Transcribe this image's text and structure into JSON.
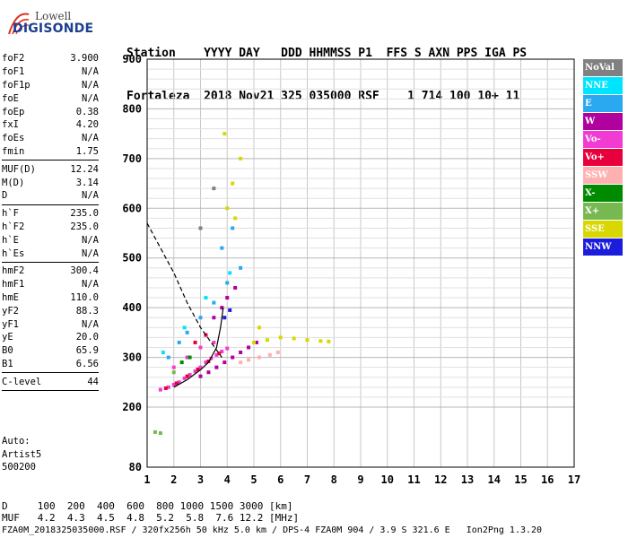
{
  "logo": {
    "brand_top": "Lowell",
    "brand_bottom": "DIGISONDE"
  },
  "header": {
    "line1": "Station    YYYY DAY   DDD HHMMSS P1  FFS S AXN PPS IGA PS",
    "line2": "Fortaleza  2018 Nov21 325 035000 RSF    1 714 100 10+ 11"
  },
  "params_groups": [
    [
      {
        "k": "foF2",
        "v": "3.900"
      },
      {
        "k": "foF1",
        "v": "N/A"
      },
      {
        "k": "foF1p",
        "v": "N/A"
      },
      {
        "k": "foE",
        "v": "N/A"
      },
      {
        "k": "foEp",
        "v": "0.38"
      },
      {
        "k": "fxI",
        "v": "4.20"
      },
      {
        "k": "foEs",
        "v": "N/A"
      },
      {
        "k": "fmin",
        "v": "1.75"
      }
    ],
    [
      {
        "k": "MUF(D)",
        "v": "12.24"
      },
      {
        "k": "M(D)",
        "v": "3.14"
      },
      {
        "k": "D",
        "v": "N/A"
      }
    ],
    [
      {
        "k": "h`F",
        "v": "235.0"
      },
      {
        "k": "h`F2",
        "v": "235.0"
      },
      {
        "k": "h`E",
        "v": "N/A"
      },
      {
        "k": "h`Es",
        "v": "N/A"
      }
    ],
    [
      {
        "k": "hmF2",
        "v": "300.4"
      },
      {
        "k": "hmF1",
        "v": "N/A"
      },
      {
        "k": "hmE",
        "v": "110.0"
      },
      {
        "k": "yF2",
        "v": "88.3"
      },
      {
        "k": "yF1",
        "v": "N/A"
      },
      {
        "k": "yE",
        "v": "20.0"
      },
      {
        "k": "B0",
        "v": "65.9"
      },
      {
        "k": "B1",
        "v": "6.56"
      }
    ],
    [
      {
        "k": "C-level",
        "v": "44"
      }
    ]
  ],
  "auto": {
    "line1": "Auto:",
    "line2": "Artist5",
    "line3": "500200"
  },
  "legend": [
    {
      "label": "NoVal",
      "color": "#808080"
    },
    {
      "label": "NNE",
      "color": "#00e5ff"
    },
    {
      "label": "E",
      "color": "#2aa8f0"
    },
    {
      "label": "W",
      "color": "#b0009e"
    },
    {
      "label": "Vo-",
      "color": "#f03cd2"
    },
    {
      "label": "Vo+",
      "color": "#e8003c"
    },
    {
      "label": "SSW",
      "color": "#ffb0b0"
    },
    {
      "label": "X-",
      "color": "#008a00"
    },
    {
      "label": "X+",
      "color": "#78b850"
    },
    {
      "label": "SSE",
      "color": "#d8d800"
    },
    {
      "label": "NNW",
      "color": "#1c1cdc"
    }
  ],
  "footer": {
    "line1": "D     100  200  400  600  800 1000 1500 3000 [km]",
    "line2": "MUF   4.2  4.3  4.5  4.8  5.2  5.8  7.6 12.2 [MHz]",
    "line3": "FZA0M_2018325035000.RSF / 320fx256h 50 kHz 5.0 km / DPS-4 FZA0M 904 / 3.9 S 321.6 E   Ion2Png 1.3.20"
  },
  "chart_data": {
    "type": "scatter",
    "title": "",
    "xlabel": "",
    "ylabel": "",
    "xlim": [
      1,
      17
    ],
    "ylim": [
      80,
      900
    ],
    "x_ticks": [
      1,
      2,
      3,
      4,
      5,
      6,
      7,
      8,
      9,
      10,
      11,
      12,
      13,
      14,
      15,
      16,
      17
    ],
    "y_ticks": [
      80,
      200,
      300,
      400,
      500,
      600,
      700,
      800,
      900
    ],
    "grid": true,
    "series": [
      {
        "name": "Vo-",
        "color": "#f03cd2",
        "points": [
          [
            1.5,
            235
          ],
          [
            1.8,
            240
          ],
          [
            2.0,
            245
          ],
          [
            2.2,
            250
          ],
          [
            2.4,
            258
          ],
          [
            2.6,
            265
          ],
          [
            2.8,
            272
          ],
          [
            3.0,
            280
          ],
          [
            3.2,
            290
          ],
          [
            3.4,
            298
          ],
          [
            3.6,
            305
          ],
          [
            3.8,
            312
          ],
          [
            4.0,
            318
          ],
          [
            2.5,
            300
          ],
          [
            3.0,
            320
          ],
          [
            3.5,
            330
          ],
          [
            2.0,
            280
          ]
        ]
      },
      {
        "name": "W",
        "color": "#b0009e",
        "points": [
          [
            3.0,
            262
          ],
          [
            3.3,
            270
          ],
          [
            3.6,
            280
          ],
          [
            3.9,
            290
          ],
          [
            4.2,
            300
          ],
          [
            4.5,
            310
          ],
          [
            4.8,
            320
          ],
          [
            5.1,
            330
          ],
          [
            3.8,
            400
          ],
          [
            4.0,
            420
          ],
          [
            4.3,
            440
          ],
          [
            3.5,
            380
          ]
        ]
      },
      {
        "name": "Vo+",
        "color": "#e8003c",
        "points": [
          [
            1.7,
            238
          ],
          [
            2.1,
            248
          ],
          [
            2.5,
            262
          ],
          [
            2.9,
            276
          ],
          [
            3.3,
            292
          ],
          [
            3.7,
            308
          ],
          [
            2.8,
            330
          ],
          [
            3.2,
            345
          ]
        ]
      },
      {
        "name": "E",
        "color": "#2aa8f0",
        "points": [
          [
            1.8,
            300
          ],
          [
            2.5,
            350
          ],
          [
            3.0,
            380
          ],
          [
            3.5,
            410
          ],
          [
            4.0,
            450
          ],
          [
            4.5,
            480
          ],
          [
            3.8,
            520
          ],
          [
            4.2,
            560
          ],
          [
            2.2,
            330
          ]
        ]
      },
      {
        "name": "NNE",
        "color": "#00e5ff",
        "points": [
          [
            1.6,
            310
          ],
          [
            2.4,
            360
          ],
          [
            3.2,
            420
          ],
          [
            4.1,
            470
          ]
        ]
      },
      {
        "name": "SSE",
        "color": "#d8d800",
        "points": [
          [
            5.0,
            330
          ],
          [
            5.5,
            335
          ],
          [
            6.0,
            340
          ],
          [
            6.5,
            338
          ],
          [
            7.0,
            335
          ],
          [
            7.5,
            333
          ],
          [
            7.8,
            332
          ],
          [
            4.0,
            600
          ],
          [
            4.2,
            650
          ],
          [
            4.5,
            700
          ],
          [
            3.9,
            750
          ],
          [
            4.3,
            580
          ],
          [
            5.2,
            360
          ]
        ]
      },
      {
        "name": "SSW",
        "color": "#ffb0b0",
        "points": [
          [
            4.5,
            290
          ],
          [
            4.8,
            295
          ],
          [
            5.2,
            300
          ],
          [
            5.6,
            305
          ],
          [
            5.9,
            310
          ]
        ]
      },
      {
        "name": "X-",
        "color": "#008a00",
        "points": [
          [
            2.3,
            290
          ],
          [
            2.6,
            300
          ]
        ]
      },
      {
        "name": "X+",
        "color": "#78b850",
        "points": [
          [
            1.3,
            150
          ],
          [
            1.5,
            148
          ],
          [
            2.0,
            270
          ]
        ]
      },
      {
        "name": "NNW",
        "color": "#1c1cdc",
        "points": [
          [
            3.9,
            380
          ],
          [
            4.1,
            395
          ]
        ]
      },
      {
        "name": "NoVal",
        "color": "#808080",
        "points": [
          [
            3.0,
            560
          ],
          [
            3.5,
            640
          ]
        ]
      }
    ],
    "curves": [
      {
        "name": "o-trace",
        "color": "#000000",
        "style": "solid",
        "points": [
          [
            2.0,
            240
          ],
          [
            2.5,
            255
          ],
          [
            3.0,
            275
          ],
          [
            3.3,
            290
          ],
          [
            3.6,
            320
          ],
          [
            3.75,
            360
          ],
          [
            3.85,
            400
          ]
        ]
      },
      {
        "name": "profile",
        "color": "#000000",
        "style": "dashed",
        "points": [
          [
            1.0,
            570
          ],
          [
            1.5,
            520
          ],
          [
            2.0,
            470
          ],
          [
            2.5,
            410
          ],
          [
            3.0,
            360
          ],
          [
            3.4,
            330
          ],
          [
            3.8,
            300
          ]
        ]
      }
    ]
  }
}
